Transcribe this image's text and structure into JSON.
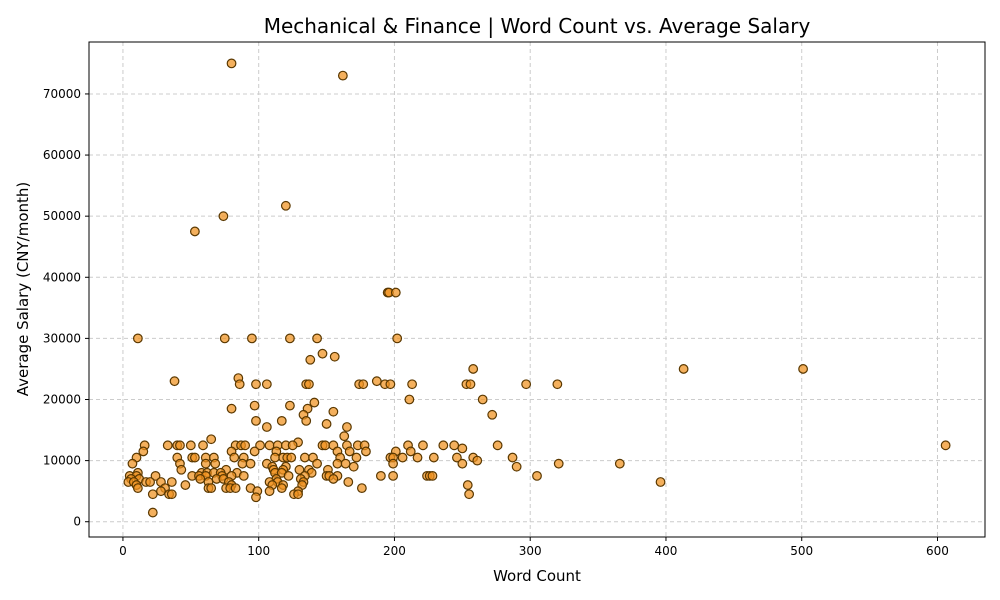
{
  "chart_data": {
    "type": "scatter",
    "title": "Mechanical & Finance | Word Count vs. Average Salary",
    "xlabel": "Word Count",
    "ylabel": "Average Salary (CNY/month)",
    "xlim": [
      -25,
      635
    ],
    "ylim": [
      -2500,
      78500
    ],
    "xticks": [
      0,
      100,
      200,
      300,
      400,
      500,
      600
    ],
    "yticks": [
      0,
      10000,
      20000,
      30000,
      40000,
      50000,
      60000,
      70000
    ],
    "grid": true,
    "point_color": "#f0921e",
    "edge_color": "#5a3800",
    "series": [
      {
        "points": [
          [
            80,
            75000
          ],
          [
            162,
            73000
          ],
          [
            120,
            51700
          ],
          [
            74,
            50000
          ],
          [
            53,
            47500
          ],
          [
            195,
            37500
          ],
          [
            196,
            37500
          ],
          [
            201,
            37500
          ],
          [
            11,
            30000
          ],
          [
            75,
            30000
          ],
          [
            95,
            30000
          ],
          [
            123,
            30000
          ],
          [
            143,
            30000
          ],
          [
            202,
            30000
          ],
          [
            147,
            27500
          ],
          [
            156,
            27000
          ],
          [
            138,
            26500
          ],
          [
            258,
            25000
          ],
          [
            413,
            25000
          ],
          [
            501,
            25000
          ],
          [
            85,
            23500
          ],
          [
            38,
            23000
          ],
          [
            187,
            23000
          ],
          [
            86,
            22500
          ],
          [
            98,
            22500
          ],
          [
            106,
            22500
          ],
          [
            135,
            22500
          ],
          [
            137,
            22500
          ],
          [
            174,
            22500
          ],
          [
            177,
            22500
          ],
          [
            193,
            22500
          ],
          [
            197,
            22500
          ],
          [
            213,
            22500
          ],
          [
            253,
            22500
          ],
          [
            256,
            22500
          ],
          [
            297,
            22500
          ],
          [
            320,
            22500
          ],
          [
            211,
            20000
          ],
          [
            265,
            20000
          ],
          [
            141,
            19500
          ],
          [
            123,
            19000
          ],
          [
            97,
            19000
          ],
          [
            80,
            18500
          ],
          [
            136,
            18500
          ],
          [
            155,
            18000
          ],
          [
            272,
            17500
          ],
          [
            133,
            17500
          ],
          [
            98,
            16500
          ],
          [
            117,
            16500
          ],
          [
            135,
            16500
          ],
          [
            150,
            16000
          ],
          [
            106,
            15500
          ],
          [
            165,
            15500
          ],
          [
            163,
            14000
          ],
          [
            65,
            13500
          ],
          [
            129,
            13000
          ],
          [
            16,
            12500
          ],
          [
            33,
            12500
          ],
          [
            40,
            12500
          ],
          [
            42,
            12500
          ],
          [
            50,
            12500
          ],
          [
            59,
            12500
          ],
          [
            83,
            12500
          ],
          [
            87,
            12500
          ],
          [
            90,
            12500
          ],
          [
            101,
            12500
          ],
          [
            108,
            12500
          ],
          [
            114,
            12500
          ],
          [
            120,
            12500
          ],
          [
            125,
            12500
          ],
          [
            147,
            12500
          ],
          [
            149,
            12500
          ],
          [
            155,
            12500
          ],
          [
            165,
            12500
          ],
          [
            173,
            12500
          ],
          [
            178,
            12500
          ],
          [
            210,
            12500
          ],
          [
            221,
            12500
          ],
          [
            236,
            12500
          ],
          [
            244,
            12500
          ],
          [
            276,
            12500
          ],
          [
            250,
            12000
          ],
          [
            15,
            11500
          ],
          [
            80,
            11500
          ],
          [
            97,
            11500
          ],
          [
            113,
            11500
          ],
          [
            158,
            11500
          ],
          [
            167,
            11500
          ],
          [
            179,
            11500
          ],
          [
            201,
            11500
          ],
          [
            212,
            11500
          ],
          [
            10,
            10500
          ],
          [
            40,
            10500
          ],
          [
            51,
            10500
          ],
          [
            53,
            10500
          ],
          [
            61,
            10500
          ],
          [
            67,
            10500
          ],
          [
            82,
            10500
          ],
          [
            89,
            10500
          ],
          [
            112,
            10500
          ],
          [
            118,
            10500
          ],
          [
            121,
            10500
          ],
          [
            124,
            10500
          ],
          [
            134,
            10500
          ],
          [
            140,
            10500
          ],
          [
            160,
            10500
          ],
          [
            172,
            10500
          ],
          [
            197,
            10500
          ],
          [
            199,
            10500
          ],
          [
            206,
            10500
          ],
          [
            217,
            10500
          ],
          [
            229,
            10500
          ],
          [
            246,
            10500
          ],
          [
            258,
            10500
          ],
          [
            287,
            10500
          ],
          [
            7,
            9500
          ],
          [
            42,
            9500
          ],
          [
            61,
            9500
          ],
          [
            68,
            9500
          ],
          [
            88,
            9500
          ],
          [
            94,
            9500
          ],
          [
            106,
            9500
          ],
          [
            143,
            9500
          ],
          [
            158,
            9500
          ],
          [
            164,
            9500
          ],
          [
            199,
            9500
          ],
          [
            250,
            9500
          ],
          [
            261,
            10000
          ],
          [
            321,
            9500
          ],
          [
            366,
            9500
          ],
          [
            110,
            9000
          ],
          [
            120,
            9000
          ],
          [
            170,
            9000
          ],
          [
            290,
            9000
          ],
          [
            43,
            8500
          ],
          [
            76,
            8500
          ],
          [
            111,
            8500
          ],
          [
            118,
            8500
          ],
          [
            130,
            8500
          ],
          [
            137,
            8500
          ],
          [
            151,
            8500
          ],
          [
            11,
            8000
          ],
          [
            58,
            8000
          ],
          [
            62,
            8000
          ],
          [
            67,
            8000
          ],
          [
            72,
            8000
          ],
          [
            84,
            8000
          ],
          [
            112,
            8000
          ],
          [
            117,
            8000
          ],
          [
            139,
            8000
          ],
          [
            5,
            7500
          ],
          [
            10,
            7500
          ],
          [
            24,
            7500
          ],
          [
            51,
            7500
          ],
          [
            56,
            7500
          ],
          [
            61,
            7500
          ],
          [
            73,
            7500
          ],
          [
            80,
            7500
          ],
          [
            89,
            7500
          ],
          [
            122,
            7500
          ],
          [
            134,
            7500
          ],
          [
            150,
            7500
          ],
          [
            152,
            7500
          ],
          [
            158,
            7500
          ],
          [
            190,
            7500
          ],
          [
            199,
            7500
          ],
          [
            224,
            7500
          ],
          [
            226,
            7500
          ],
          [
            228,
            7500
          ],
          [
            305,
            7500
          ],
          [
            6,
            7000
          ],
          [
            12,
            7000
          ],
          [
            57,
            7000
          ],
          [
            69,
            7000
          ],
          [
            74,
            7000
          ],
          [
            113,
            7000
          ],
          [
            131,
            7000
          ],
          [
            155,
            7000
          ],
          [
            4,
            6500
          ],
          [
            8,
            6500
          ],
          [
            17,
            6500
          ],
          [
            20,
            6500
          ],
          [
            28,
            6500
          ],
          [
            36,
            6500
          ],
          [
            63,
            6500
          ],
          [
            78,
            6500
          ],
          [
            108,
            6500
          ],
          [
            114,
            6500
          ],
          [
            133,
            6500
          ],
          [
            166,
            6500
          ],
          [
            396,
            6500
          ],
          [
            10,
            6000
          ],
          [
            46,
            6000
          ],
          [
            80,
            6000
          ],
          [
            110,
            6000
          ],
          [
            118,
            6000
          ],
          [
            132,
            6000
          ],
          [
            254,
            6000
          ],
          [
            11,
            5500
          ],
          [
            31,
            5500
          ],
          [
            63,
            5500
          ],
          [
            65,
            5500
          ],
          [
            76,
            5500
          ],
          [
            79,
            5500
          ],
          [
            83,
            5500
          ],
          [
            94,
            5500
          ],
          [
            117,
            5500
          ],
          [
            176,
            5500
          ],
          [
            28,
            5000
          ],
          [
            99,
            5000
          ],
          [
            108,
            5000
          ],
          [
            129,
            5000
          ],
          [
            22,
            4500
          ],
          [
            34,
            4500
          ],
          [
            36,
            4500
          ],
          [
            126,
            4500
          ],
          [
            129,
            4500
          ],
          [
            255,
            4500
          ],
          [
            98,
            4000
          ],
          [
            22,
            1500
          ],
          [
            606,
            12500
          ]
        ]
      }
    ]
  }
}
